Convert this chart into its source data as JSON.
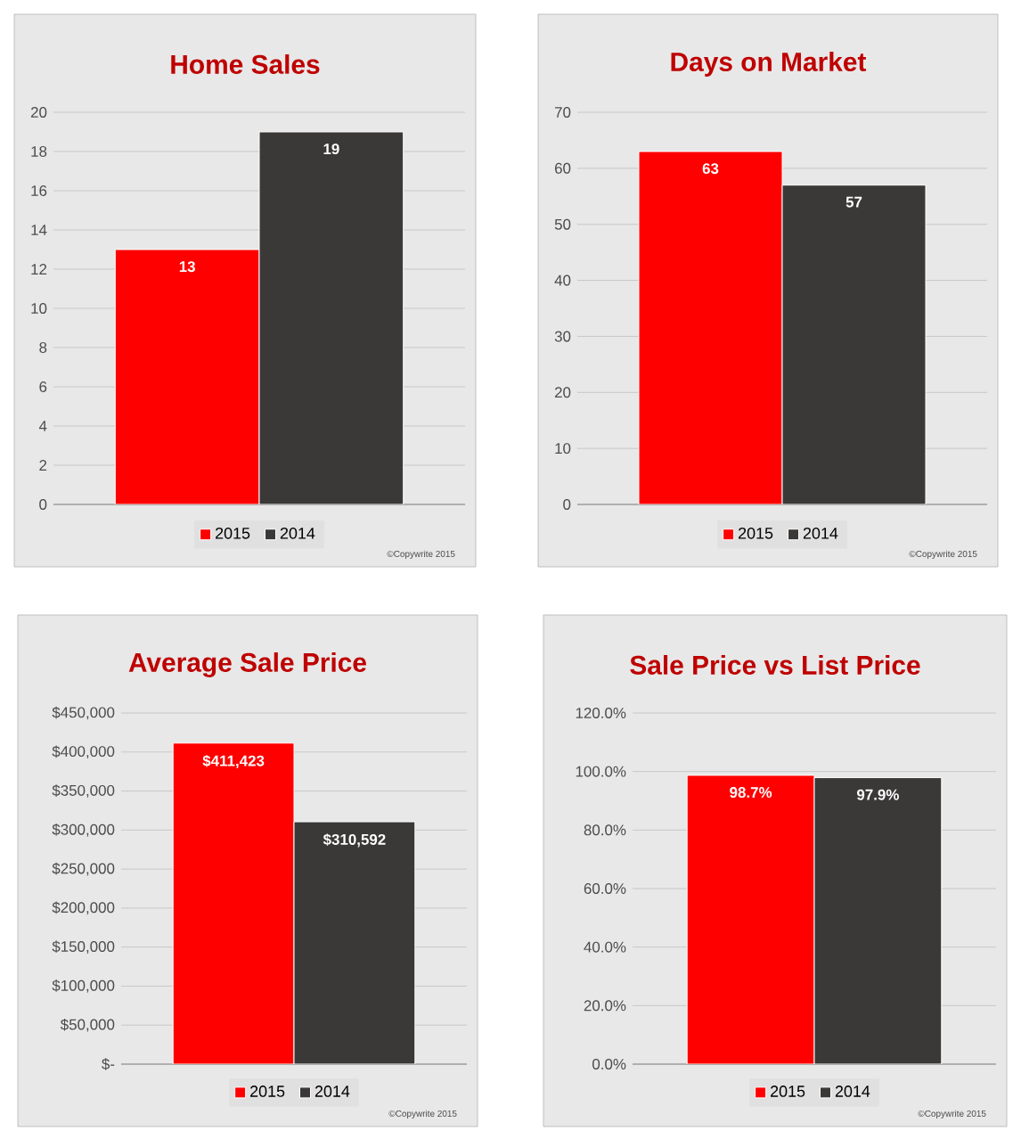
{
  "chart_data": [
    {
      "type": "bar",
      "title": "Home Sales",
      "categories": [
        null
      ],
      "series": [
        {
          "name": "2015",
          "color": "#ff0000",
          "values": [
            13
          ]
        },
        {
          "name": "2014",
          "color": "#3b3838",
          "values": [
            19
          ]
        }
      ],
      "ylim": [
        0,
        20
      ],
      "yticks": [
        0,
        2,
        4,
        6,
        8,
        10,
        12,
        14,
        16,
        18,
        20
      ],
      "grid": "y",
      "legend": "bottom",
      "data_labels": true,
      "tick_labels": "y",
      "annotations": [
        "©Copywrite 2015"
      ]
    },
    {
      "type": "bar",
      "title": "Days on Market",
      "categories": [
        null
      ],
      "series": [
        {
          "name": "2015",
          "color": "#ff0000",
          "values": [
            63
          ]
        },
        {
          "name": "2014",
          "color": "#3b3838",
          "values": [
            57
          ]
        }
      ],
      "ylim": [
        0,
        70
      ],
      "yticks": [
        0,
        10,
        20,
        30,
        40,
        50,
        60,
        70
      ],
      "grid": "y",
      "legend": "bottom",
      "data_labels": true,
      "tick_labels": "y",
      "annotations": [
        "©Copywrite 2015"
      ]
    },
    {
      "type": "bar",
      "title": "Average Sale Price",
      "categories": [
        null
      ],
      "series": [
        {
          "name": "2015",
          "color": "#ff0000",
          "values": [
            411423
          ],
          "value_labels": [
            "$411,423"
          ]
        },
        {
          "name": "2014",
          "color": "#3b3838",
          "values": [
            310592
          ],
          "value_labels": [
            "$310,592"
          ]
        }
      ],
      "ylim": [
        0,
        450000
      ],
      "yticks": [
        {
          "value": 0,
          "label": "$-"
        },
        {
          "value": 50000,
          "label": "$50,000"
        },
        {
          "value": 100000,
          "label": "$100,000"
        },
        {
          "value": 150000,
          "label": "$150,000"
        },
        {
          "value": 200000,
          "label": "$200,000"
        },
        {
          "value": 250000,
          "label": "$250,000"
        },
        {
          "value": 300000,
          "label": "$300,000"
        },
        {
          "value": 350000,
          "label": "$350,000"
        },
        {
          "value": 400000,
          "label": "$400,000"
        },
        {
          "value": 450000,
          "label": "$450,000"
        }
      ],
      "grid": "y",
      "legend": "bottom",
      "tick_labels": "y",
      "annotations": [
        "©Copywrite 2015"
      ]
    },
    {
      "type": "bar",
      "title": "Sale Price vs List Price",
      "categories": [
        null
      ],
      "series": [
        {
          "name": "2015",
          "color": "#ff0000",
          "values": [
            98.7
          ],
          "value_labels": [
            "98.7%"
          ]
        },
        {
          "name": "2014",
          "color": "#3b3838",
          "values": [
            97.9
          ],
          "value_labels": [
            "97.9%"
          ]
        }
      ],
      "ylim": [
        0,
        120
      ],
      "yticks": [
        {
          "value": 0,
          "label": "0.0%"
        },
        {
          "value": 20,
          "label": "20.0%"
        },
        {
          "value": 40,
          "label": "40.0%"
        },
        {
          "value": 60,
          "label": "60.0%"
        },
        {
          "value": 80,
          "label": "80.0%"
        },
        {
          "value": 100,
          "label": "100.0%"
        },
        {
          "value": 120,
          "label": "120.0%"
        }
      ],
      "grid": "y",
      "legend": "bottom",
      "tick_labels": "y",
      "annotations": [
        "©Copywrite 2015"
      ]
    }
  ]
}
